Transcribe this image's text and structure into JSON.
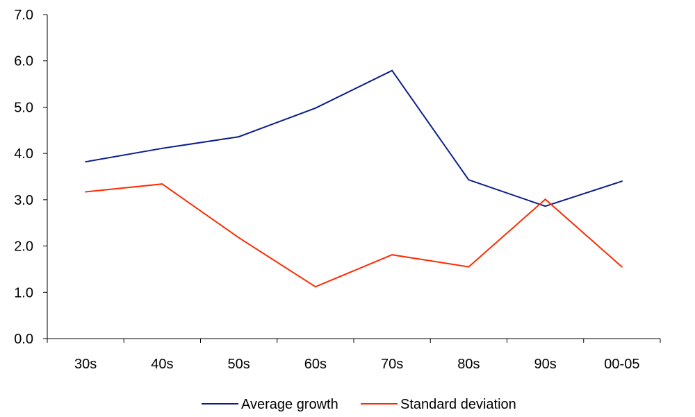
{
  "chart_data": {
    "type": "line",
    "categories": [
      "30s",
      "40s",
      "50s",
      "60s",
      "70s",
      "80s",
      "90s",
      "00-05"
    ],
    "series": [
      {
        "name": "Average growth",
        "color": "#0a1e8c",
        "values": [
          3.82,
          4.11,
          4.36,
          4.98,
          5.79,
          3.43,
          2.86,
          3.4
        ]
      },
      {
        "name": "Standard deviation",
        "color": "#ff2a00",
        "values": [
          3.17,
          3.34,
          2.18,
          1.12,
          1.81,
          1.55,
          3.01,
          1.55
        ]
      }
    ],
    "yticks": [
      "0.0",
      "1.0",
      "2.0",
      "3.0",
      "4.0",
      "5.0",
      "6.0",
      "7.0"
    ],
    "ylim": [
      0,
      7
    ],
    "grid": false,
    "legend_position": "bottom"
  }
}
